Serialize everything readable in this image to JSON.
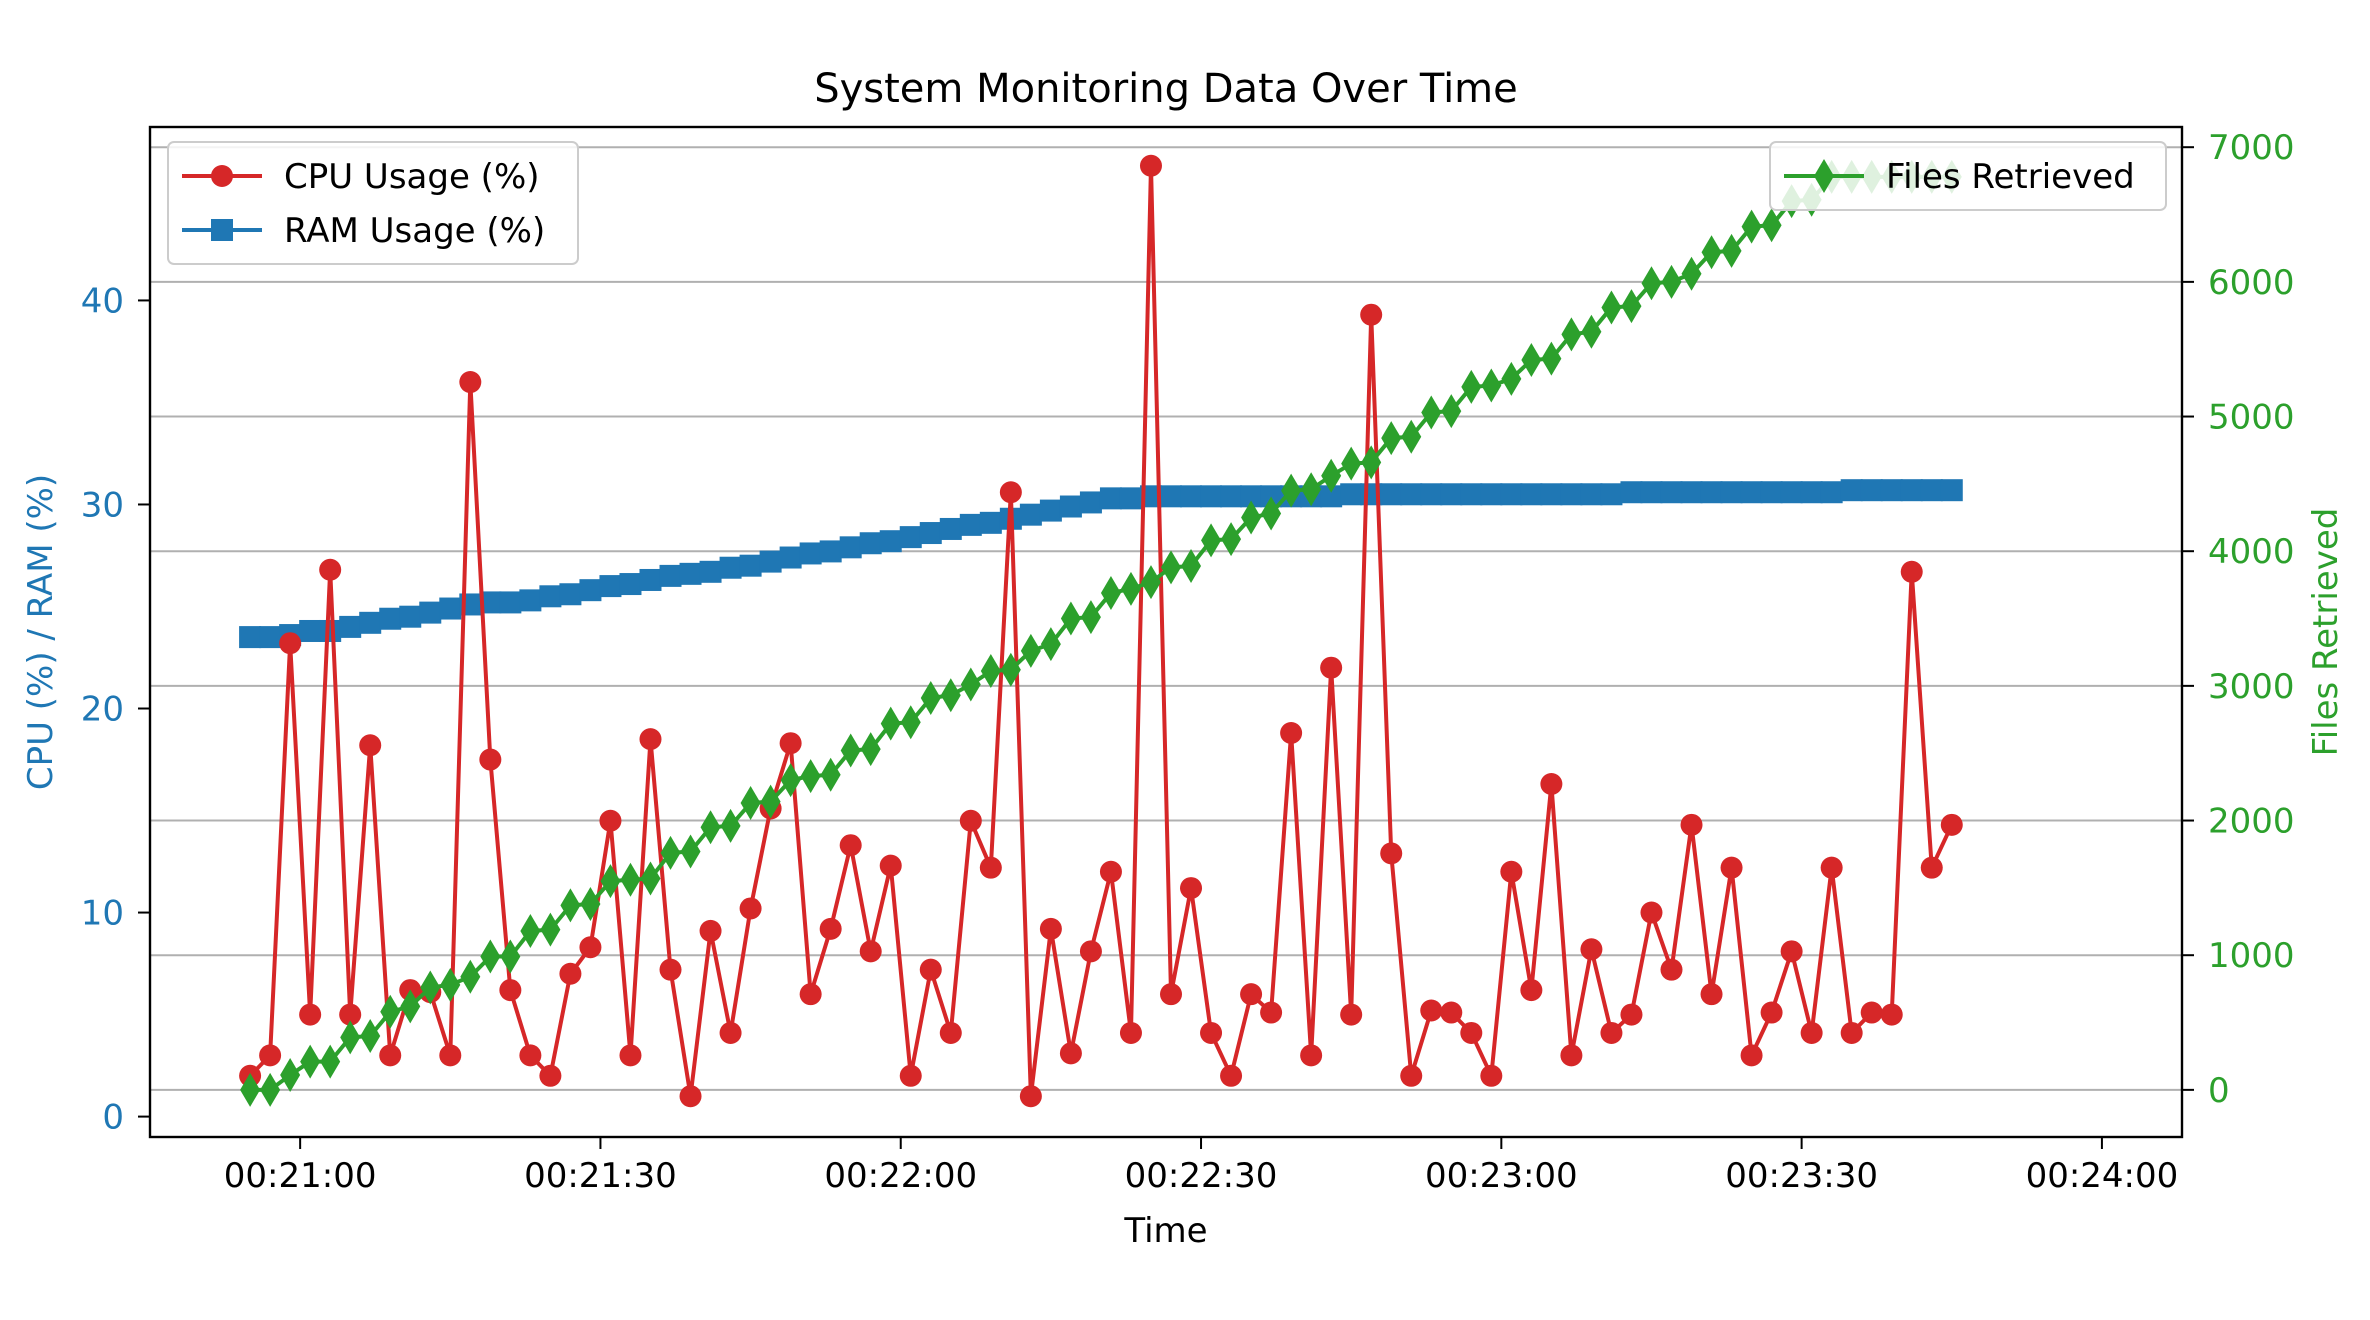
{
  "chart_data": {
    "type": "line",
    "title": "System Monitoring Data Over Time",
    "xlabel": "Time",
    "ylabel_left": "CPU (%) / RAM (%)",
    "ylabel_right": "Files Retrieved",
    "x_ticks": [
      "00:21:00",
      "00:21:30",
      "00:22:00",
      "00:22:30",
      "00:23:00",
      "00:23:30",
      "00:24:00"
    ],
    "y_ticks_left": [
      0,
      10,
      20,
      30,
      40
    ],
    "y_ticks_right": [
      0,
      1000,
      2000,
      3000,
      4000,
      5000,
      6000,
      7000
    ],
    "x_range_seconds_after": "00:20:45",
    "x_range": [
      "00:20:45",
      "00:24:08"
    ],
    "ylim_left": [
      -1,
      48.5
    ],
    "ylim_right": [
      -350,
      7150
    ],
    "grid": "right-axis horizontal",
    "legend_left": "upper-left",
    "legend_right": "upper-right",
    "colors": {
      "cpu": "#d62728",
      "ram": "#1f77b4",
      "files": "#2ca02c",
      "left_axis": "#1f77b4",
      "right_axis": "#2ca02c"
    },
    "time_start": "00:20:55",
    "time_step_seconds": 2,
    "series": [
      {
        "name": "CPU Usage (%)",
        "axis": "left",
        "marker": "circle",
        "values": [
          2,
          3,
          23.2,
          5,
          26.8,
          5,
          18.2,
          3,
          6.2,
          6.1,
          3,
          36,
          17.5,
          6.2,
          3,
          2,
          7,
          8.3,
          14.5,
          3,
          18.5,
          7.2,
          1,
          9.1,
          4.1,
          10.2,
          15.1,
          18.3,
          6,
          9.2,
          13.3,
          8.1,
          12.3,
          2,
          7.2,
          4.1,
          14.5,
          12.2,
          30.6,
          1,
          9.2,
          3.1,
          8.1,
          12,
          4.1,
          46.6,
          6,
          11.2,
          4.1,
          2,
          6,
          5.1,
          18.8,
          3,
          22,
          5,
          39.3,
          12.9,
          2,
          5.2,
          5.1,
          4.1,
          2,
          12,
          6.2,
          16.3,
          3,
          8.2,
          4.1,
          5,
          10,
          7.2,
          14.3,
          6,
          12.2,
          3,
          5.1,
          8.1,
          4.1,
          12.2,
          4.1,
          5.1,
          5,
          26.7,
          12.2,
          14.3
        ]
      },
      {
        "name": "RAM Usage (%)",
        "axis": "left",
        "marker": "square",
        "values": [
          23.5,
          23.5,
          23.6,
          23.8,
          23.8,
          24.0,
          24.2,
          24.4,
          24.5,
          24.7,
          24.9,
          25.1,
          25.2,
          25.2,
          25.3,
          25.5,
          25.6,
          25.8,
          26.0,
          26.1,
          26.3,
          26.5,
          26.6,
          26.7,
          26.9,
          27.0,
          27.2,
          27.4,
          27.6,
          27.7,
          27.9,
          28.1,
          28.2,
          28.4,
          28.6,
          28.8,
          29.0,
          29.1,
          29.3,
          29.5,
          29.7,
          29.9,
          30.1,
          30.3,
          30.3,
          30.4,
          30.4,
          30.4,
          30.4,
          30.4,
          30.4,
          30.4,
          30.4,
          30.4,
          30.4,
          30.5,
          30.5,
          30.5,
          30.5,
          30.5,
          30.5,
          30.5,
          30.5,
          30.5,
          30.5,
          30.5,
          30.5,
          30.5,
          30.5,
          30.6,
          30.6,
          30.6,
          30.6,
          30.6,
          30.6,
          30.6,
          30.6,
          30.6,
          30.6,
          30.6,
          30.7,
          30.7,
          30.7,
          30.7,
          30.7,
          30.7
        ]
      },
      {
        "name": "Files Retrieved",
        "axis": "right",
        "marker": "diamond",
        "values": [
          0,
          0,
          110,
          210,
          210,
          390,
          400,
          580,
          620,
          760,
          780,
          840,
          990,
          990,
          1180,
          1190,
          1370,
          1380,
          1550,
          1560,
          1570,
          1760,
          1770,
          1950,
          1960,
          2130,
          2140,
          2300,
          2330,
          2340,
          2520,
          2530,
          2720,
          2730,
          2910,
          2930,
          3010,
          3110,
          3120,
          3260,
          3310,
          3500,
          3510,
          3690,
          3720,
          3770,
          3880,
          3890,
          4080,
          4090,
          4250,
          4280,
          4450,
          4460,
          4560,
          4650,
          4660,
          4840,
          4850,
          5030,
          5040,
          5220,
          5230,
          5280,
          5420,
          5430,
          5610,
          5630,
          5810,
          5820,
          5990,
          6000,
          6060,
          6220,
          6230,
          6410,
          6420,
          6600,
          6610,
          6780,
          6780,
          6780,
          6780,
          6780,
          6780,
          6780
        ]
      }
    ]
  }
}
